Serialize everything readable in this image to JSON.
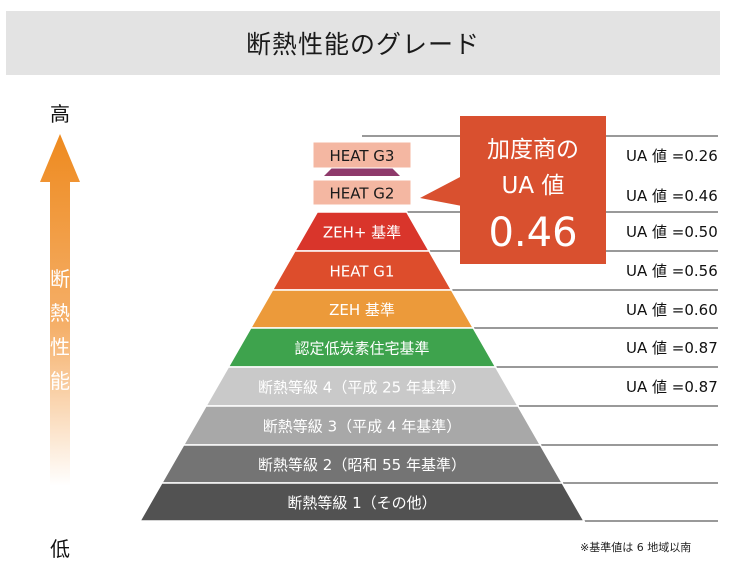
{
  "title": "断熱性能のグレード",
  "axis": {
    "high": "高",
    "low": "低",
    "label_chars": [
      "断",
      "熱",
      "性",
      "能"
    ]
  },
  "callout": {
    "line1": "加度商の",
    "line2": "UA 値",
    "value": "0.46",
    "color": "#d9502f"
  },
  "levels": [
    {
      "label": "HEAT G3",
      "ua": "UA 値 =0.26",
      "color": "#f4b7a2",
      "text_color": "#1a1a1a"
    },
    {
      "label": "HEAT G2",
      "ua": "UA 値 =0.46",
      "color": "#f4b7a2",
      "text_color": "#1a1a1a"
    },
    {
      "label": "ZEH+ 基準",
      "ua": "UA 値 =0.50",
      "color": "#d9352b",
      "text_color": "#ffffff"
    },
    {
      "label": "HEAT G1",
      "ua": "UA 値 =0.56",
      "color": "#dd4d2c",
      "text_color": "#ffffff"
    },
    {
      "label": "ZEH 基準",
      "ua": "UA 値 =0.60",
      "color": "#ec9a3a",
      "text_color": "#ffffff"
    },
    {
      "label": "認定低炭素住宅基準",
      "ua": "UA 値 =0.87",
      "color": "#3ea34d",
      "text_color": "#ffffff"
    },
    {
      "label": "断熱等級 4（平成 25 年基準）",
      "ua": "UA 値 =0.87",
      "color": "#c9c9c9",
      "text_color": "#ffffff"
    },
    {
      "label": "断熱等級 3（平成 4 年基準）",
      "ua": "",
      "color": "#a8a8a8",
      "text_color": "#ffffff"
    },
    {
      "label": "断熱等級 2（昭和 55 年基準）",
      "ua": "",
      "color": "#747474",
      "text_color": "#ffffff"
    },
    {
      "label": "断熱等級 1（その他）",
      "ua": "",
      "color": "#525252",
      "text_color": "#ffffff"
    }
  ],
  "footnote": "※基準値は 6 地域以南"
}
